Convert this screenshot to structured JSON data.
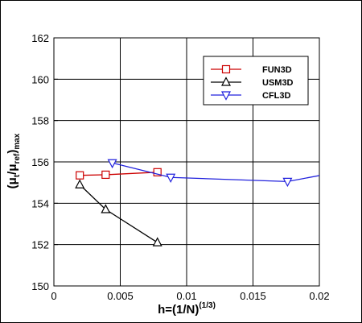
{
  "chart_data": {
    "type": "line",
    "title": "",
    "xlabel": {
      "base": "h=(1/N)",
      "sup": "(1/3)"
    },
    "ylabel": {
      "paren_open": "(",
      "mu1": "μ",
      "sub1": "t",
      "slash": "/",
      "mu2": "μ",
      "sub2": "ref",
      "paren_close": ")",
      "sub3": "max"
    },
    "xlim": [
      0,
      0.02
    ],
    "ylim": [
      150,
      162
    ],
    "xticks": [
      0,
      0.005,
      0.01,
      0.015,
      0.02
    ],
    "xtick_labels": [
      "0",
      "0.005",
      "0.01",
      "0.015",
      "0.02"
    ],
    "yticks": [
      150,
      152,
      154,
      156,
      158,
      160,
      162
    ],
    "ytick_labels": [
      "150",
      "152",
      "154",
      "156",
      "158",
      "160",
      "162"
    ],
    "grid": true,
    "legend_position": "top-right",
    "series": [
      {
        "name": "FUN3D",
        "color": "#cc0000",
        "marker": "square",
        "x": [
          0.00195,
          0.0039,
          0.0078
        ],
        "y": [
          155.35,
          155.38,
          155.5
        ]
      },
      {
        "name": "USM3D",
        "color": "#000000",
        "marker": "triangle-up",
        "x": [
          0.00195,
          0.0039,
          0.0078
        ],
        "y": [
          154.9,
          153.7,
          152.1
        ]
      },
      {
        "name": "CFL3D",
        "color": "#2222dd",
        "marker": "triangle-down",
        "x": [
          0.0044,
          0.0088,
          0.0176,
          0.0205
        ],
        "y": [
          155.95,
          155.25,
          155.05,
          155.4
        ],
        "marked": [
          true,
          true,
          true,
          false
        ]
      }
    ]
  }
}
